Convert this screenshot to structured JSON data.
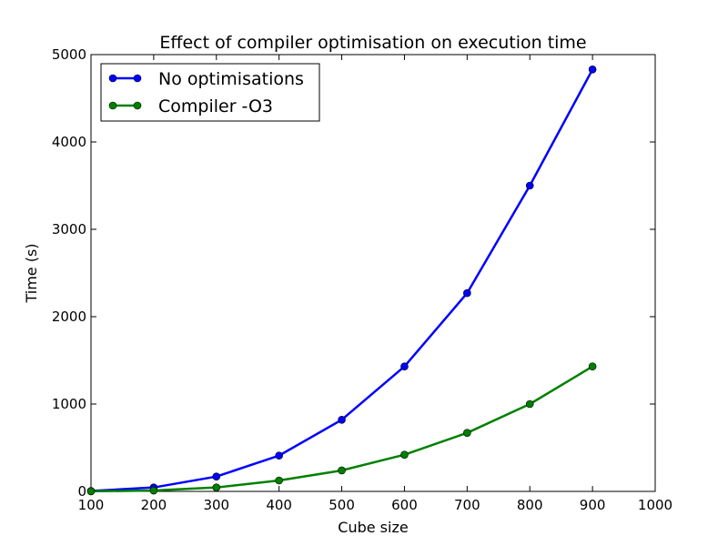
{
  "chart_data": {
    "type": "line",
    "title": "Effect of compiler optimisation on execution time",
    "xlabel": "Cube size",
    "ylabel": "Time (s)",
    "xlim": [
      100,
      1000
    ],
    "ylim": [
      0,
      5000
    ],
    "xticks": [
      100,
      200,
      300,
      400,
      500,
      600,
      700,
      800,
      900,
      1000
    ],
    "yticks": [
      0,
      1000,
      2000,
      3000,
      4000,
      5000
    ],
    "x": [
      100,
      200,
      300,
      400,
      500,
      600,
      700,
      800,
      900
    ],
    "grid": false,
    "legend_position": "top-left",
    "series": [
      {
        "name": "No optimisations",
        "color": "#0000ff",
        "values": [
          5,
          45,
          170,
          410,
          820,
          1430,
          2270,
          3500,
          4830
        ]
      },
      {
        "name": "Compiler -O3",
        "color": "#008000",
        "values": [
          1,
          10,
          45,
          125,
          240,
          420,
          670,
          1000,
          1430
        ]
      }
    ]
  }
}
